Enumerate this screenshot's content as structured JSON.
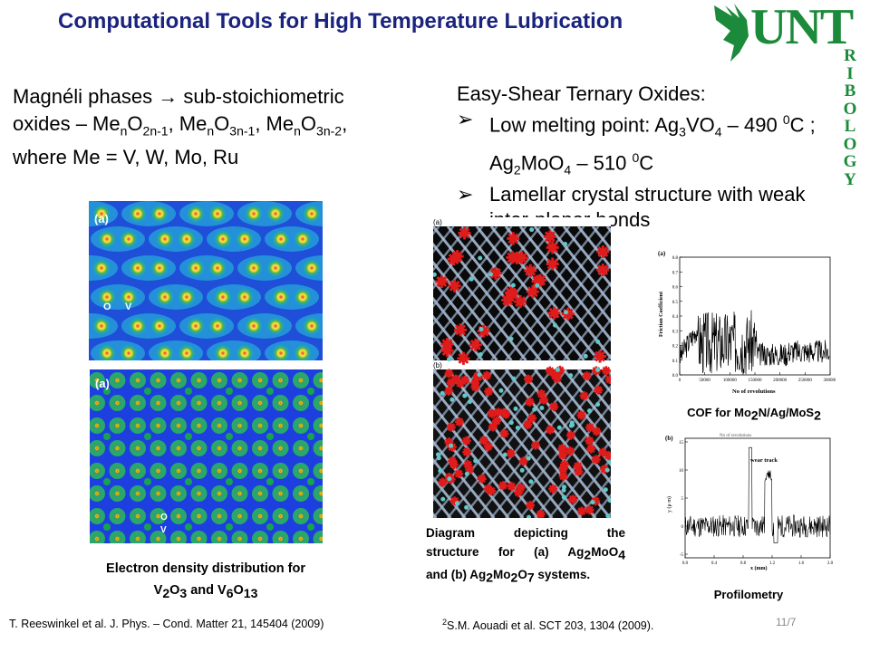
{
  "title": "Computational Tools for High Temperature Lubrication",
  "logo": {
    "text": "UNT",
    "tribology_letters": [
      "T",
      "R",
      "I",
      "B",
      "O",
      "L",
      "O",
      "G",
      "Y"
    ]
  },
  "left_block": {
    "line1_a": "Magnéli phases ",
    "line1_b": " sub-stoichiometric",
    "line2_a": "oxides – Me",
    "line2_b": "n",
    "line2_c": "O",
    "line2_d": "2n-1",
    "line2_e": ", Me",
    "line2_f": "n",
    "line2_g": "O",
    "line2_h": "3n-1",
    "line2_i": ", Me",
    "line2_j": "n",
    "line2_k": "O",
    "line2_l": "3n-2",
    "line2_m": ",",
    "line3": "where Me = V, W, Mo, Ru"
  },
  "right_block": {
    "heading": "Easy-Shear Ternary Oxides:",
    "b1_a": "Low melting point: Ag",
    "b1_b": "3",
    "b1_c": "VO",
    "b1_d": "4",
    "b1_e": " – 490 ",
    "b1_f": "0",
    "b1_g": "C ;",
    "b1_h": "Ag",
    "b1_i": "2",
    "b1_j": "MoO",
    "b1_k": "4",
    "b1_l": " – 510 ",
    "b1_m": "0",
    "b1_n": "C",
    "b2_a": "Lamellar crystal structure with weak",
    "b2_b": "inter-planar bonds"
  },
  "density_fig": {
    "panel_a_label": "(a)",
    "panel_b_label": "(a)",
    "o_label": "O",
    "v_label": "V"
  },
  "density_caption": {
    "line1": "Electron density distribution for",
    "l2_a": "V",
    "l2_b": "2",
    "l2_c": "O",
    "l2_d": "3",
    "l2_e": " and V",
    "l2_f": "6",
    "l2_g": "O",
    "l2_h": "13"
  },
  "structure_fig": {
    "label_a": "(a)",
    "label_b": "(b)"
  },
  "structure_caption": {
    "l1": "Diagram depicting the",
    "l2_a": "structure for (a) Ag",
    "l2_b": "2",
    "l2_c": "MoO",
    "l2_d": "4",
    "l3_a": "and (b) Ag",
    "l3_b": "2",
    "l3_c": "Mo",
    "l3_d": "2",
    "l3_e": "O",
    "l3_f": "7",
    "l3_g": " systems."
  },
  "cof_plot": {
    "panel_label": "(a)",
    "ylabel": "Friction Coefficient",
    "xlabel": "No of revolutions",
    "yticks": [
      "0.0",
      "0.1",
      "0.2",
      "0.3",
      "0.4",
      "0.5",
      "0.6",
      "0.7",
      "0.8"
    ],
    "xticks": [
      "0",
      "50000",
      "100000",
      "150000",
      "200000",
      "250000",
      "300000"
    ]
  },
  "cof_caption": {
    "a": "COF for Mo",
    "b": "2",
    "c": "N/Ag/MoS",
    "d": "2"
  },
  "profile_plot": {
    "panel_label": "(b)",
    "annotation": "wear track",
    "top_label": "No of revolutions",
    "ylabel": "y (μ m)",
    "xlabel": "x (mm)",
    "yticks": [
      "-5",
      "0",
      "5",
      "10",
      "15"
    ],
    "xticks": [
      "0.0",
      "0.4",
      "0.8",
      "1.2",
      "1.6",
      "2.0"
    ]
  },
  "profile_caption": "Profilometry",
  "references": {
    "left": "T. Reeswinkel et al.  J. Phys. – Cond. Matter 21, 145404 (2009)",
    "right_sup": "2",
    "right": "S.M. Aouadi et al. SCT 203, 1304 (2009)."
  },
  "page_number": "11/7"
}
